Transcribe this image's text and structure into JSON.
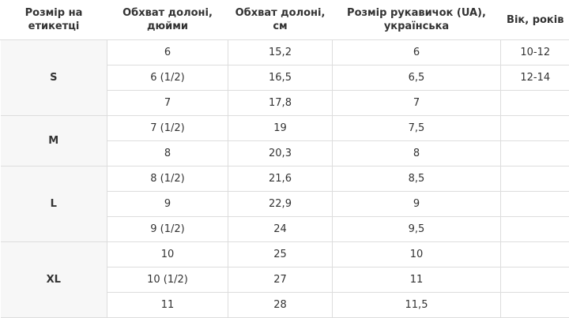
{
  "table": {
    "headers": [
      "Розмір на етикетці",
      "Обхват долоні, дюйми",
      "Обхват долоні, см",
      "Розмір рукавичок (UA), українська",
      "Вік, років"
    ],
    "groups": [
      {
        "size": "S",
        "rows": [
          [
            "6",
            "15,2",
            "6",
            "10-12"
          ],
          [
            "6 (1/2)",
            "16,5",
            "6,5",
            "12-14"
          ],
          [
            "7",
            "17,8",
            "7"
          ]
        ]
      },
      {
        "size": "M",
        "rows": [
          [
            "7 (1/2)",
            "19",
            "7,5"
          ],
          [
            "8",
            "20,3",
            "8"
          ]
        ]
      },
      {
        "size": "L",
        "rows": [
          [
            "8 (1/2)",
            "21,6",
            "8,5"
          ],
          [
            "9",
            "22,9",
            "9"
          ],
          [
            "9 (1/2)",
            "24",
            "9,5"
          ]
        ]
      },
      {
        "size": "XL",
        "rows": [
          [
            "10",
            "25",
            "10"
          ],
          [
            "10 (1/2)",
            "27",
            "11"
          ],
          [
            "11",
            "28",
            "11,5"
          ]
        ]
      }
    ]
  }
}
